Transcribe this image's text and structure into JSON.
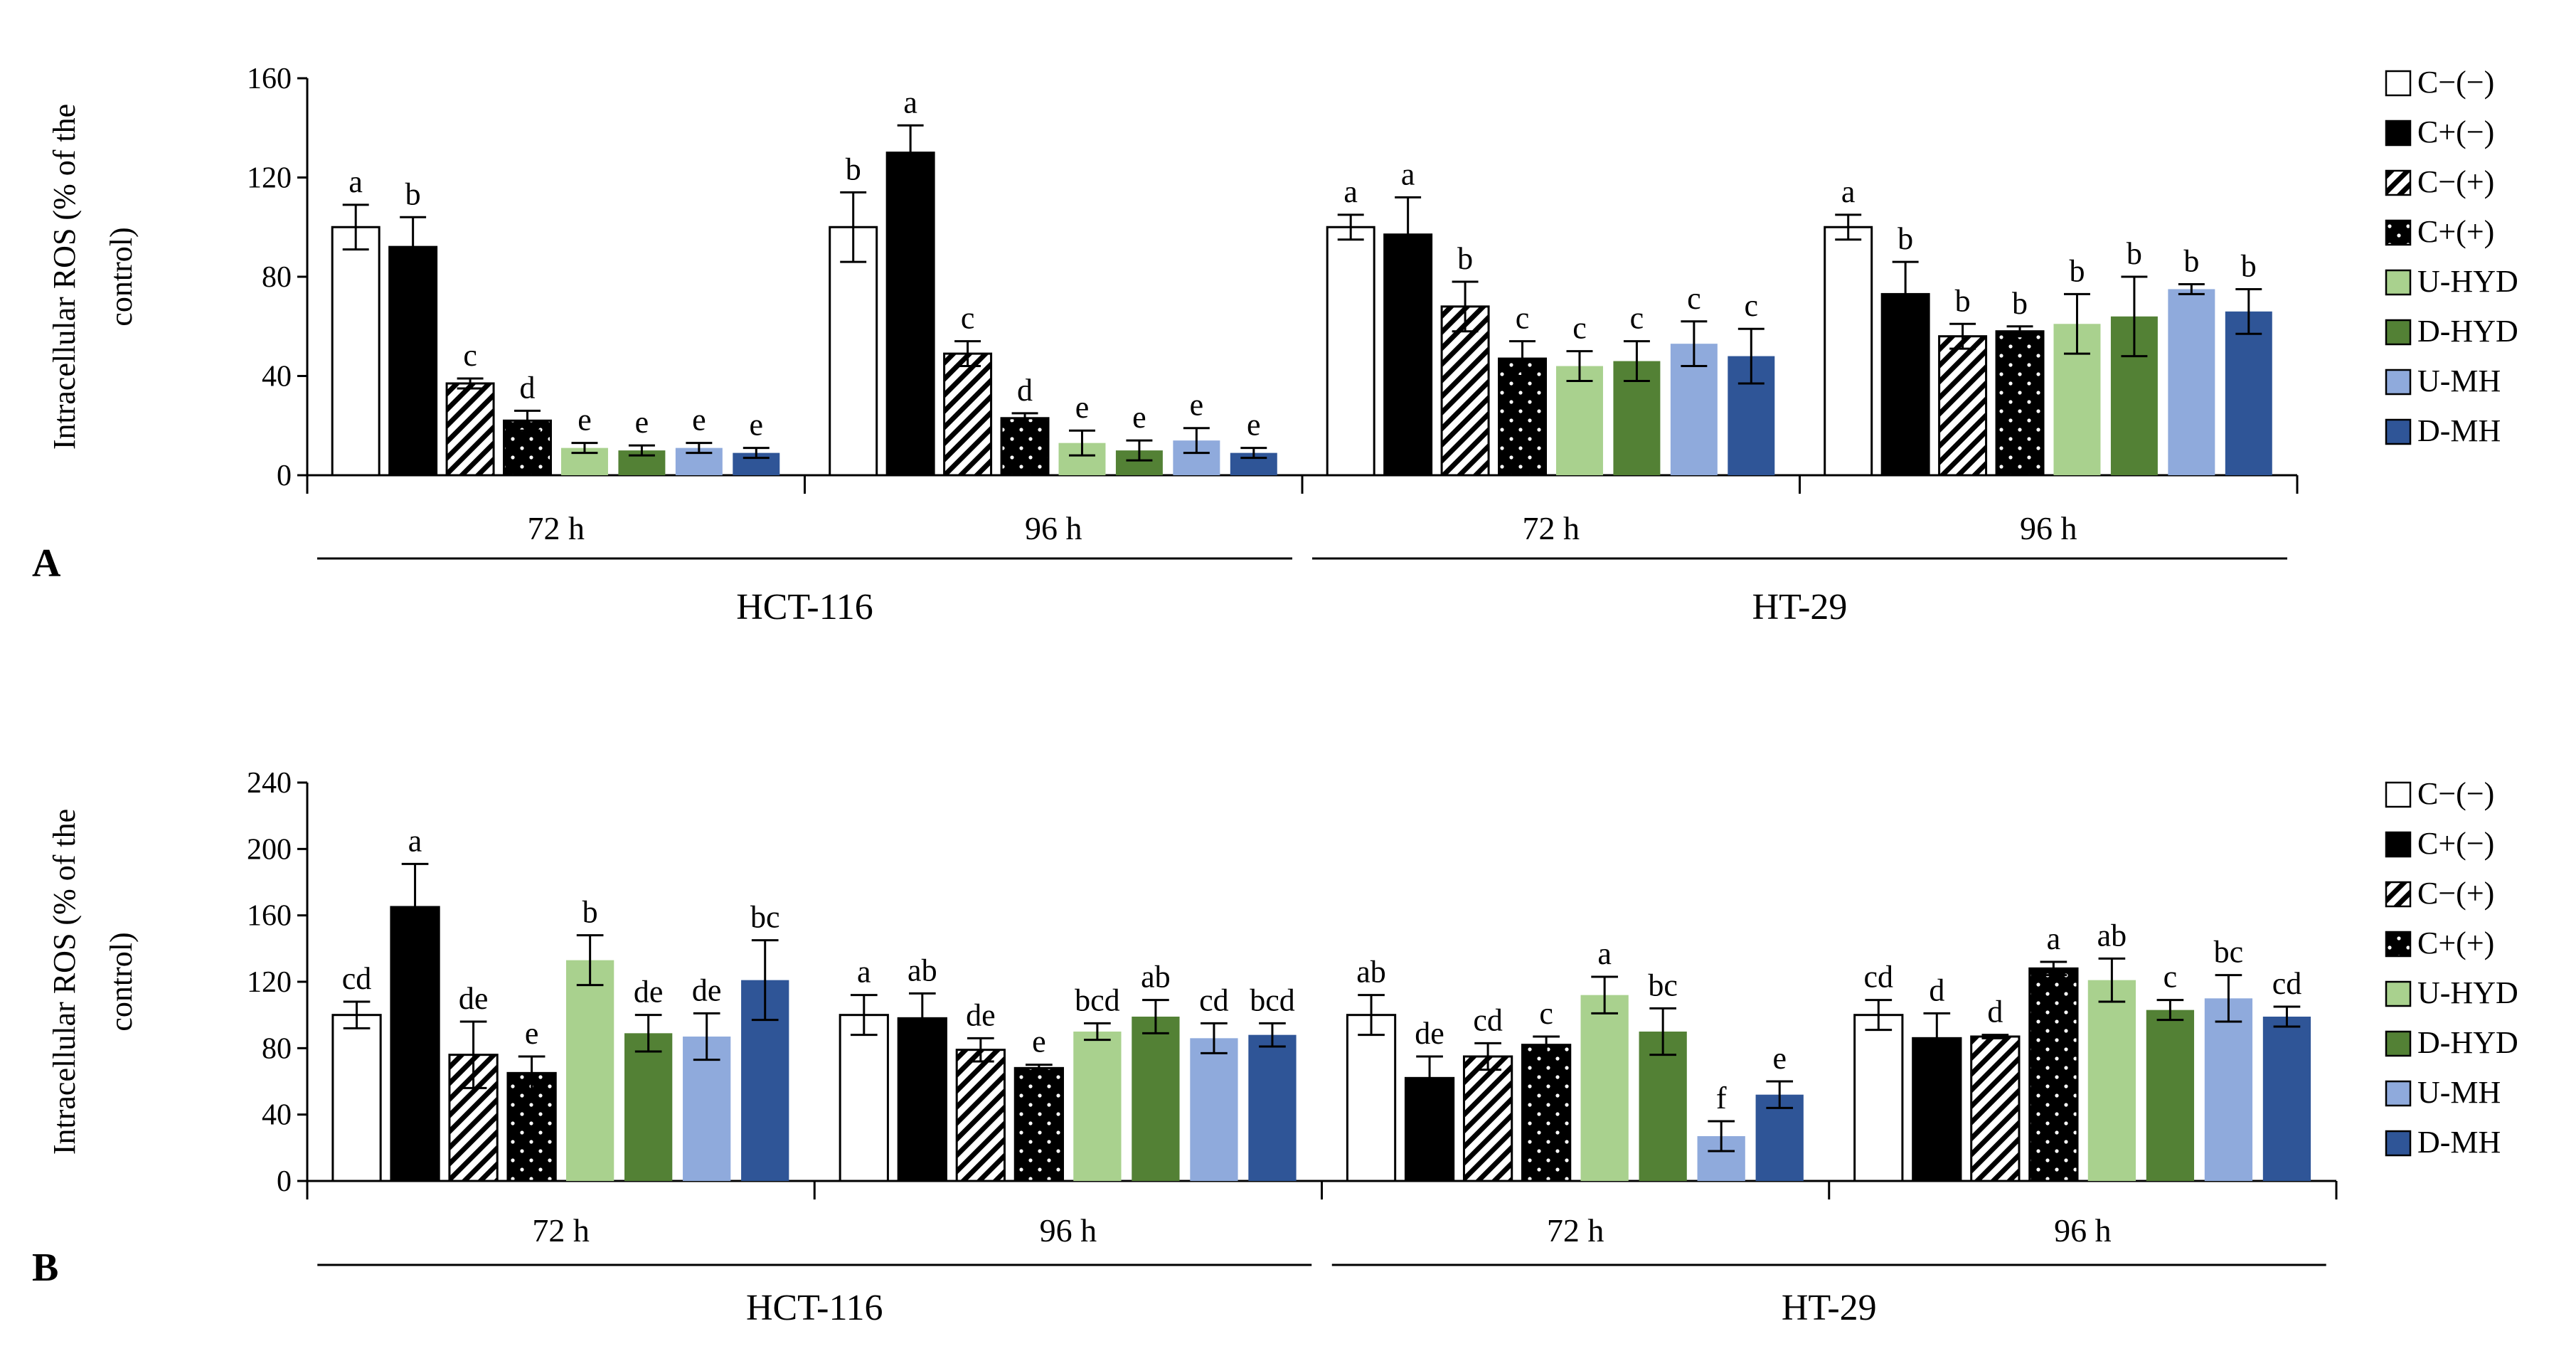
{
  "chart_data": [
    {
      "panel_label": "A",
      "type": "bar",
      "ylabel_line1": "Intracellular ROS (% of the",
      "ylabel_line2": "control)",
      "ylim": [
        0,
        160
      ],
      "yticks": [
        "0",
        "40",
        "80",
        "120",
        "160"
      ],
      "ytick_values": [
        0,
        40,
        80,
        120,
        160
      ],
      "groups": [
        {
          "time": "72 h",
          "cell": "HCT-116",
          "values": [
            100,
            92,
            37,
            22,
            11,
            10,
            11,
            9
          ],
          "errors": [
            9,
            12,
            2,
            4,
            2,
            2,
            2,
            2
          ],
          "letters": [
            "a",
            "b",
            "c",
            "d",
            "e",
            "e",
            "e",
            "e"
          ]
        },
        {
          "time": "96 h",
          "cell": "HCT-116",
          "values": [
            100,
            130,
            49,
            23,
            13,
            10,
            14,
            9
          ],
          "errors": [
            14,
            11,
            5,
            2,
            5,
            4,
            5,
            2
          ],
          "letters": [
            "b",
            "a",
            "c",
            "d",
            "e",
            "e",
            "e",
            "e"
          ]
        },
        {
          "time": "72 h",
          "cell": "HT-29",
          "values": [
            100,
            97,
            68,
            47,
            44,
            46,
            53,
            48
          ],
          "errors": [
            5,
            15,
            10,
            7,
            6,
            8,
            9,
            11
          ],
          "letters": [
            "a",
            "a",
            "b",
            "c",
            "c",
            "c",
            "c",
            "c"
          ]
        },
        {
          "time": "96 h",
          "cell": "HT-29",
          "values": [
            100,
            73,
            56,
            58,
            61,
            64,
            75,
            66
          ],
          "errors": [
            5,
            13,
            5,
            2,
            12,
            16,
            2,
            9
          ],
          "letters": [
            "a",
            "b",
            "b",
            "b",
            "b",
            "b",
            "b",
            "b"
          ]
        }
      ],
      "cell_lines": [
        "HCT-116",
        "HT-29"
      ]
    },
    {
      "panel_label": "B",
      "type": "bar",
      "ylabel_line1": "Intracellular ROS (% of the",
      "ylabel_line2": "control)",
      "ylim": [
        0,
        240
      ],
      "yticks": [
        "0",
        "40",
        "80",
        "120",
        "160",
        "200",
        "240"
      ],
      "ytick_values": [
        0,
        40,
        80,
        120,
        160,
        200,
        240
      ],
      "groups": [
        {
          "time": "72 h",
          "cell": "HCT-116",
          "values": [
            100,
            165,
            76,
            65,
            133,
            89,
            87,
            121
          ],
          "errors": [
            8,
            26,
            20,
            10,
            15,
            11,
            14,
            24
          ],
          "letters": [
            "cd",
            "a",
            "de",
            "e",
            "b",
            "de",
            "de",
            "bc"
          ]
        },
        {
          "time": "96 h",
          "cell": "HCT-116",
          "values": [
            100,
            98,
            79,
            68,
            90,
            99,
            86,
            88
          ],
          "errors": [
            12,
            15,
            7,
            2,
            5,
            10,
            9,
            7
          ],
          "letters": [
            "a",
            "ab",
            "de",
            "e",
            "bcd",
            "ab",
            "cd",
            "bcd"
          ]
        },
        {
          "time": "72 h",
          "cell": "HT-29",
          "values": [
            100,
            62,
            75,
            82,
            112,
            90,
            27,
            52
          ],
          "errors": [
            12,
            13,
            8,
            5,
            11,
            14,
            9,
            8
          ],
          "letters": [
            "ab",
            "de",
            "cd",
            "c",
            "a",
            "bc",
            "f",
            "e"
          ]
        },
        {
          "time": "96 h",
          "cell": "HT-29",
          "values": [
            100,
            86,
            87,
            128,
            121,
            103,
            110,
            99
          ],
          "errors": [
            9,
            15,
            1,
            4,
            13,
            6,
            14,
            6
          ],
          "letters": [
            "cd",
            "d",
            "d",
            "a",
            "ab",
            "c",
            "bc",
            "cd"
          ]
        }
      ],
      "cell_lines": [
        "HCT-116",
        "HT-29"
      ]
    }
  ],
  "legend": [
    {
      "label": "C−(−)",
      "style": "white"
    },
    {
      "label": "C+(−)",
      "style": "black"
    },
    {
      "label": "C−(+)",
      "style": "hatch"
    },
    {
      "label": "C+(+)",
      "style": "dots"
    },
    {
      "label": "U-HYD",
      "style": "#a9d18e"
    },
    {
      "label": "D-HYD",
      "style": "#538135"
    },
    {
      "label": "U-MH",
      "style": "#8faadc"
    },
    {
      "label": "D-MH",
      "style": "#2f5597"
    }
  ]
}
